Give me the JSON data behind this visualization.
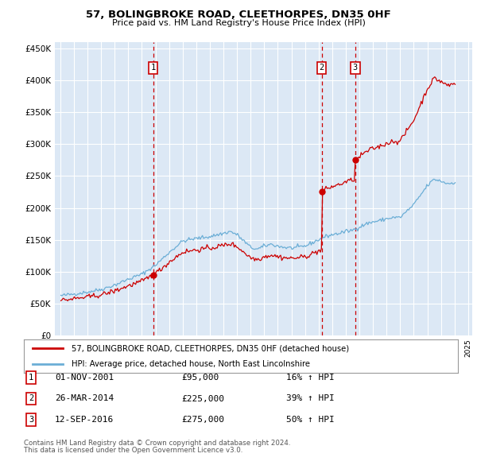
{
  "title": "57, BOLINGBROKE ROAD, CLEETHORPES, DN35 0HF",
  "subtitle": "Price paid vs. HM Land Registry's House Price Index (HPI)",
  "legend_line1": "57, BOLINGBROKE ROAD, CLEETHORPES, DN35 0HF (detached house)",
  "legend_line2": "HPI: Average price, detached house, North East Lincolnshire",
  "footer1": "Contains HM Land Registry data © Crown copyright and database right 2024.",
  "footer2": "This data is licensed under the Open Government Licence v3.0.",
  "transactions": [
    {
      "num": 1,
      "date": "01-NOV-2001",
      "price": 95000,
      "pct": "16%",
      "dir": "↑",
      "x_year": 2001.833
    },
    {
      "num": 2,
      "date": "26-MAR-2014",
      "price": 225000,
      "pct": "39%",
      "dir": "↑",
      "x_year": 2014.23
    },
    {
      "num": 3,
      "date": "12-SEP-2016",
      "price": 275000,
      "pct": "50%",
      "dir": "↑",
      "x_year": 2016.7
    }
  ],
  "ylim": [
    0,
    460000
  ],
  "yticks": [
    0,
    50000,
    100000,
    150000,
    200000,
    250000,
    300000,
    350000,
    400000,
    450000
  ],
  "xlim_start": 1994.6,
  "xlim_end": 2025.3,
  "hpi_color": "#6baed6",
  "price_color": "#cc0000",
  "bg_color": "#dce8f5",
  "grid_color": "#ffffff",
  "vline_color": "#cc0000",
  "box_color": "#cc0000"
}
